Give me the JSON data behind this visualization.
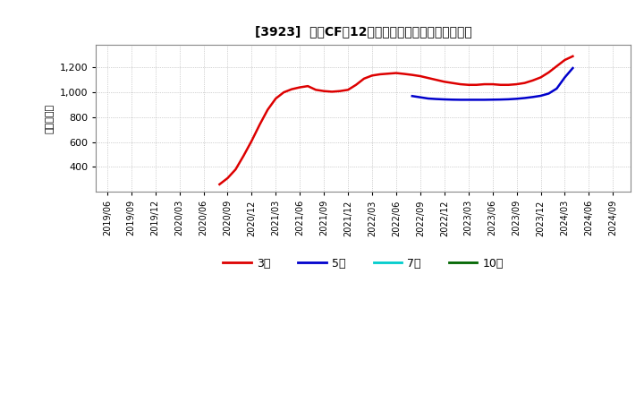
{
  "title": "[3923]  営業CFの12か月移動合計の標準偏差の推移",
  "ylabel": "（百万円）",
  "background_color": "#ffffff",
  "plot_bg_color": "#ffffff",
  "grid_color": "#aaaaaa",
  "ylim": [
    200,
    1380
  ],
  "yticks": [
    400,
    600,
    800,
    1000,
    1200
  ],
  "line_3y": {
    "color": "#dd0000",
    "label": "3年",
    "x": [
      2020.583,
      2020.667,
      2020.75,
      2020.833,
      2020.917,
      2021.0,
      2021.083,
      2021.167,
      2021.25,
      2021.333,
      2021.417,
      2021.5,
      2021.583,
      2021.667,
      2021.75,
      2021.833,
      2021.917,
      2022.0,
      2022.083,
      2022.167,
      2022.25,
      2022.333,
      2022.417,
      2022.5,
      2022.583,
      2022.667,
      2022.75,
      2022.833,
      2022.917,
      2023.0,
      2023.083,
      2023.167,
      2023.25,
      2023.333,
      2023.417,
      2023.5,
      2023.583,
      2023.667,
      2023.75,
      2023.833,
      2023.917,
      2024.0,
      2024.083,
      2024.167,
      2024.25
    ],
    "y": [
      260,
      310,
      380,
      490,
      610,
      740,
      860,
      950,
      1000,
      1025,
      1040,
      1050,
      1020,
      1010,
      1005,
      1010,
      1020,
      1060,
      1110,
      1135,
      1145,
      1150,
      1155,
      1148,
      1140,
      1130,
      1115,
      1100,
      1085,
      1075,
      1065,
      1060,
      1060,
      1065,
      1065,
      1060,
      1060,
      1065,
      1075,
      1095,
      1120,
      1160,
      1210,
      1260,
      1290
    ]
  },
  "line_5y": {
    "color": "#0000cc",
    "label": "5年",
    "x": [
      2022.583,
      2022.667,
      2022.75,
      2022.833,
      2022.917,
      2023.0,
      2023.083,
      2023.167,
      2023.25,
      2023.333,
      2023.417,
      2023.5,
      2023.583,
      2023.667,
      2023.75,
      2023.833,
      2023.917,
      2024.0,
      2024.083,
      2024.167,
      2024.25
    ],
    "y": [
      970,
      960,
      950,
      946,
      943,
      941,
      940,
      940,
      940,
      940,
      941,
      942,
      944,
      948,
      954,
      962,
      972,
      990,
      1030,
      1120,
      1195
    ]
  },
  "line_7y": {
    "color": "#00cccc",
    "label": "7年",
    "x": [],
    "y": []
  },
  "line_10y": {
    "color": "#006600",
    "label": "10年",
    "x": [],
    "y": []
  },
  "x_tick_positions": [
    2019.417,
    2019.667,
    2019.917,
    2020.167,
    2020.417,
    2020.667,
    2020.917,
    2021.167,
    2021.417,
    2021.667,
    2021.917,
    2022.167,
    2022.417,
    2022.667,
    2022.917,
    2023.167,
    2023.417,
    2023.667,
    2023.917,
    2024.167,
    2024.417,
    2024.667
  ],
  "x_tick_labels": [
    "2019/06",
    "2019/09",
    "2019/12",
    "2020/03",
    "2020/06",
    "2020/09",
    "2020/12",
    "2021/03",
    "2021/06",
    "2021/09",
    "2021/12",
    "2022/03",
    "2022/06",
    "2022/09",
    "2022/12",
    "2023/03",
    "2023/06",
    "2023/09",
    "2023/12",
    "2024/03",
    "2024/06",
    "2024/09"
  ],
  "xlim": [
    2019.3,
    2024.85
  ],
  "legend_items": [
    {
      "label": "3年",
      "color": "#dd0000"
    },
    {
      "label": "5年",
      "color": "#0000cc"
    },
    {
      "label": "7年",
      "color": "#00cccc"
    },
    {
      "label": "10年",
      "color": "#006600"
    }
  ]
}
